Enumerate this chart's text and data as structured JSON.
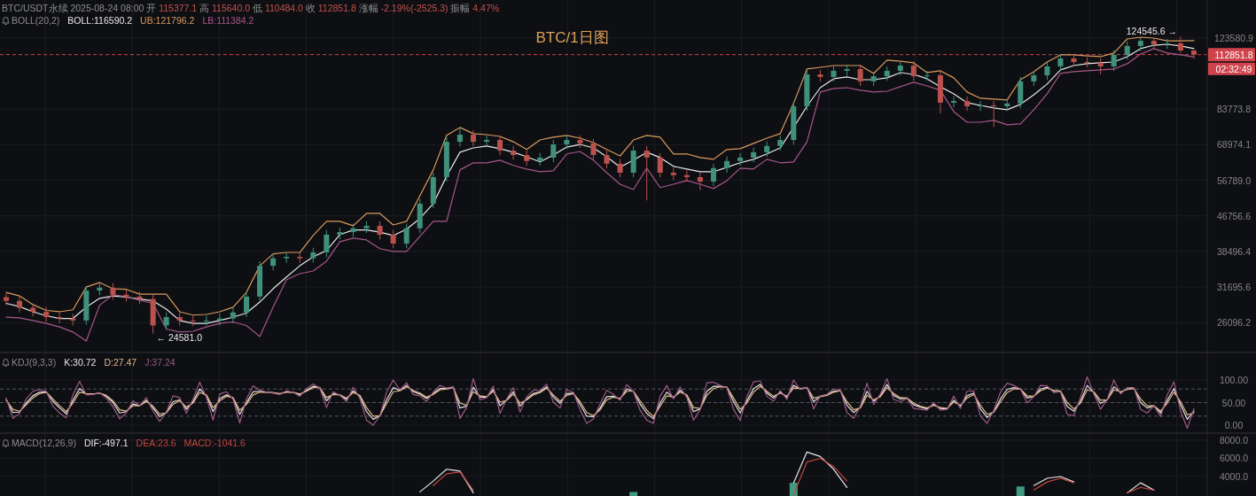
{
  "chart_data": [
    {
      "type": "candlestick",
      "title": "BTC/1日图",
      "subtitle": "BTC/USDT永续 2025-08-24 08:00 开 115377.1 高 115640.0 低 110484.0 收 112851.8 涨幅 -2.19%(-2525.3) 振幅 4.47%",
      "legend_title": "BOLL(20,2)",
      "legend": "top left",
      "log": true,
      "grid": true,
      "categories": [
        null,
        null,
        null,
        null,
        null,
        null,
        null,
        null,
        null,
        null,
        null,
        null,
        null,
        null,
        null,
        null,
        null,
        null,
        null,
        null,
        null,
        null,
        null,
        null,
        null,
        null,
        null,
        null,
        null,
        null,
        null,
        null,
        null,
        null,
        null,
        null,
        null,
        null,
        null,
        null,
        null,
        null,
        null,
        null,
        null,
        null,
        null,
        null,
        null,
        null,
        null,
        null,
        null,
        null,
        null,
        null,
        null,
        null,
        null,
        null,
        null,
        null,
        null,
        null,
        null,
        null,
        null,
        null,
        null,
        null,
        null,
        null,
        null,
        null,
        null,
        null,
        null,
        null,
        null,
        null,
        null,
        null,
        null,
        null,
        null,
        null,
        null,
        null,
        null,
        null
      ],
      "ohlc": [
        [
          30000,
          30700,
          28700,
          29400
        ],
        [
          29400,
          30100,
          27600,
          28300
        ],
        [
          28300,
          29000,
          27000,
          27700
        ],
        [
          27700,
          28400,
          26200,
          26900
        ],
        [
          26900,
          27600,
          26000,
          26700
        ],
        [
          26700,
          27400,
          25700,
          26400
        ],
        [
          26400,
          31900,
          25800,
          31100
        ],
        [
          31100,
          32400,
          30300,
          31600
        ],
        [
          31600,
          32400,
          29600,
          30400
        ],
        [
          30400,
          31200,
          29300,
          30100
        ],
        [
          30100,
          30900,
          28900,
          29700
        ],
        [
          29700,
          30400,
          24581.0,
          25700
        ],
        [
          25700,
          27600,
          25100,
          26900
        ],
        [
          26900,
          27600,
          25700,
          26400
        ],
        [
          26400,
          27100,
          25600,
          26300
        ],
        [
          26300,
          27100,
          25700,
          26400
        ],
        [
          26400,
          27400,
          25700,
          26700
        ],
        [
          26700,
          28300,
          26000,
          27600
        ],
        [
          27600,
          30900,
          26900,
          30100
        ],
        [
          30100,
          36500,
          29300,
          35600
        ],
        [
          35600,
          38000,
          34700,
          37100
        ],
        [
          37100,
          38300,
          36200,
          37400
        ],
        [
          37400,
          38300,
          36200,
          37100
        ],
        [
          37100,
          39300,
          36200,
          38300
        ],
        [
          38300,
          43300,
          37300,
          42200
        ],
        [
          42200,
          43900,
          41100,
          42800
        ],
        [
          42800,
          44800,
          41700,
          43700
        ],
        [
          43700,
          45400,
          42600,
          44300
        ],
        [
          44300,
          45400,
          41100,
          42200
        ],
        [
          42200,
          43300,
          39200,
          40200
        ],
        [
          40200,
          44800,
          39200,
          43700
        ],
        [
          43700,
          51300,
          42600,
          50000
        ],
        [
          50000,
          59200,
          48800,
          57800
        ],
        [
          57800,
          71900,
          56400,
          70100
        ],
        [
          70100,
          75900,
          68300,
          72900
        ],
        [
          72900,
          74700,
          68300,
          70100
        ],
        [
          70100,
          72600,
          68300,
          70800
        ],
        [
          70800,
          72600,
          65100,
          66800
        ],
        [
          66800,
          68500,
          63600,
          65200
        ],
        [
          65200,
          66800,
          61500,
          63100
        ],
        [
          63100,
          65900,
          61500,
          64300
        ],
        [
          64300,
          70800,
          62700,
          69100
        ],
        [
          69100,
          72600,
          67400,
          70800
        ],
        [
          70800,
          72600,
          67800,
          69500
        ],
        [
          69500,
          71200,
          63600,
          65200
        ],
        [
          65200,
          66800,
          60600,
          62200
        ],
        [
          62200,
          63800,
          57700,
          59200
        ],
        [
          59200,
          68500,
          57700,
          66800
        ],
        [
          66800,
          68500,
          50900,
          64300
        ],
        [
          64300,
          65900,
          57700,
          59200
        ],
        [
          59200,
          60700,
          56900,
          58400
        ],
        [
          58400,
          59900,
          56400,
          57800
        ],
        [
          57800,
          59200,
          53800,
          56400
        ],
        [
          56400,
          62200,
          55000,
          60700
        ],
        [
          60700,
          64700,
          59200,
          63100
        ],
        [
          63100,
          65900,
          61500,
          64300
        ],
        [
          64300,
          67900,
          62700,
          66200
        ],
        [
          66200,
          70200,
          64500,
          68500
        ],
        [
          68500,
          72600,
          66800,
          70800
        ],
        [
          70800,
          87200,
          69000,
          85100
        ],
        [
          85100,
          103800,
          83000,
          101300
        ],
        [
          101300,
          103800,
          97400,
          99900
        ],
        [
          99900,
          105900,
          97400,
          103300
        ],
        [
          103300,
          106900,
          100700,
          104300
        ],
        [
          104300,
          106900,
          95100,
          97500
        ],
        [
          97500,
          102800,
          95100,
          100300
        ],
        [
          100300,
          105900,
          97800,
          103300
        ],
        [
          103300,
          109000,
          100700,
          106300
        ],
        [
          106300,
          109000,
          97800,
          100300
        ],
        [
          100300,
          103300,
          97800,
          100800
        ],
        [
          100800,
          103300,
          81800,
          86800
        ],
        [
          86800,
          89800,
          84600,
          87600
        ],
        [
          87600,
          89800,
          83000,
          85100
        ],
        [
          85100,
          87600,
          83000,
          85500
        ],
        [
          85500,
          87600,
          76000,
          85100
        ],
        [
          85100,
          88600,
          83000,
          86400
        ],
        [
          86400,
          99900,
          84200,
          97500
        ],
        [
          97500,
          103300,
          95100,
          100800
        ],
        [
          100800,
          108400,
          98300,
          105800
        ],
        [
          105800,
          113300,
          103200,
          110500
        ],
        [
          110500,
          113300,
          105700,
          108400
        ],
        [
          108400,
          111100,
          105200,
          107900
        ],
        [
          107900,
          110600,
          101300,
          105800
        ],
        [
          105800,
          115500,
          103200,
          112700
        ],
        [
          112700,
          121300,
          109900,
          118300
        ],
        [
          118300,
          123600,
          115300,
          121700
        ],
        [
          121700,
          123500,
          116400,
          119400
        ],
        [
          119400,
          123000,
          116400,
          120000
        ],
        [
          120000,
          124545.6,
          114000,
          115400
        ],
        [
          115377.1,
          115640.0,
          110484.0,
          112851.8
        ]
      ],
      "series": [
        {
          "name": "BOLL:116590.2",
          "type": "line",
          "color": "#e8e8e8",
          "values": [
            29000,
            28500,
            27700,
            27100,
            26700,
            26700,
            28400,
            29800,
            30200,
            30000,
            29700,
            29400,
            28100,
            26400,
            26000,
            26000,
            26400,
            26900,
            27500,
            29200,
            31400,
            33500,
            35600,
            37400,
            38700,
            42200,
            43300,
            43300,
            42800,
            42000,
            43500,
            46100,
            50000,
            58100,
            66200,
            67800,
            68500,
            67500,
            66200,
            64600,
            62800,
            65200,
            68100,
            69100,
            67800,
            64600,
            61000,
            63400,
            66200,
            64300,
            61300,
            60400,
            59500,
            59500,
            61000,
            62500,
            63700,
            65600,
            67800,
            75800,
            85100,
            94200,
            98900,
            99900,
            98400,
            98400,
            99400,
            102300,
            101300,
            98900,
            94700,
            91100,
            86800,
            85500,
            84300,
            83500,
            86000,
            90600,
            96100,
            103800,
            106300,
            107400,
            107900,
            108400,
            111600,
            116600,
            118800,
            119400,
            118300,
            116590.2
          ]
        },
        {
          "name": "UB:121796.2",
          "type": "line",
          "color": "#d99a5e",
          "values": [
            30800,
            30200,
            28800,
            27900,
            27700,
            28000,
            31700,
            32500,
            31400,
            31300,
            30500,
            30500,
            30500,
            27700,
            27200,
            27300,
            27700,
            28400,
            30800,
            35600,
            38000,
            38300,
            38300,
            42000,
            45400,
            45400,
            44300,
            47400,
            47400,
            44500,
            45400,
            52200,
            60100,
            72600,
            75800,
            73300,
            72900,
            72200,
            70100,
            67200,
            70800,
            71900,
            72600,
            71500,
            69800,
            67200,
            64900,
            70800,
            72600,
            71900,
            65600,
            65600,
            64300,
            63700,
            67200,
            67500,
            69500,
            71500,
            73300,
            86400,
            104300,
            105300,
            106300,
            106300,
            106300,
            101800,
            109500,
            108900,
            107900,
            102300,
            103300,
            99400,
            92000,
            88900,
            88500,
            88100,
            98400,
            102800,
            108400,
            112700,
            112700,
            112100,
            111600,
            113800,
            122900,
            124100,
            123500,
            121700,
            121700,
            121796.2
          ]
        },
        {
          "name": "LB:111384.2",
          "type": "line",
          "color": "#a8578a",
          "values": [
            26900,
            26800,
            26400,
            26000,
            25500,
            24800,
            23600,
            28700,
            30400,
            30100,
            29500,
            29000,
            25200,
            24800,
            24900,
            25500,
            26000,
            26200,
            25700,
            24200,
            28400,
            33000,
            34100,
            34600,
            36500,
            40600,
            41400,
            41000,
            39100,
            38500,
            38500,
            41800,
            45400,
            45400,
            60100,
            62500,
            62500,
            63400,
            61600,
            60400,
            59500,
            59800,
            65600,
            66500,
            63400,
            59200,
            55600,
            54000,
            60700,
            54600,
            55600,
            56700,
            55600,
            54300,
            56700,
            60700,
            60400,
            63700,
            62500,
            62800,
            70100,
            92000,
            93800,
            94200,
            92900,
            92000,
            92400,
            94700,
            97000,
            95100,
            92900,
            82700,
            78000,
            78000,
            78800,
            76900,
            77300,
            83500,
            91100,
            101800,
            102800,
            103300,
            103800,
            104300,
            107400,
            113200,
            116600,
            113800,
            112700,
            111384.2
          ]
        }
      ],
      "ylim": [
        22170,
        152080
      ],
      "yticks": [
        123580.9,
        83773.8,
        68974.1,
        {
          "value": 56789,
          "label": "56789.0"
        },
        46756.6,
        38496.4,
        31695.6,
        26096.2
      ],
      "ref_lines": [
        {
          "axis": "y",
          "value": 112851.8,
          "label": "112851.8",
          "color": "#cf444c",
          "line_style": "dashed"
        }
      ],
      "annotations": [
        {
          "text": "124545.6 →",
          "y": 124545.6
        },
        {
          "text": "← 24581.0",
          "y": 24581.0
        },
        "02:32:49"
      ]
    },
    {
      "type": "line",
      "legend_title": "KDJ(9,3,3)",
      "legend": "top left",
      "grid": true,
      "categories": [
        null,
        null,
        null,
        null,
        null,
        null,
        null,
        null,
        null,
        null,
        null,
        null,
        null,
        null,
        null,
        null,
        null,
        null,
        null,
        null,
        null,
        null,
        null,
        null,
        null,
        null,
        null,
        null,
        null,
        null,
        null,
        null,
        null,
        null,
        null,
        null,
        null,
        null,
        null,
        null,
        null,
        null,
        null,
        null,
        null,
        null,
        null,
        null,
        null,
        null,
        null,
        null,
        null,
        null,
        null,
        null,
        null,
        null,
        null,
        null,
        null,
        null,
        null,
        null,
        null,
        null,
        null,
        null,
        null,
        null,
        null,
        null,
        null,
        null,
        null,
        null,
        null,
        null,
        null,
        null,
        null,
        null,
        null,
        null,
        null,
        null,
        null,
        null,
        null,
        null,
        null,
        null,
        null,
        null,
        null,
        null,
        null,
        null,
        null,
        null,
        null,
        null,
        null,
        null,
        null,
        null,
        null,
        null,
        null,
        null,
        null,
        null,
        null,
        null,
        null,
        null,
        null,
        null,
        null,
        null,
        null,
        null,
        null,
        null,
        null,
        null,
        null,
        null,
        null,
        null,
        null,
        null,
        null,
        null,
        null,
        null,
        null,
        null,
        null,
        null,
        null,
        null,
        null,
        null,
        null,
        null,
        null,
        null,
        null,
        null,
        null,
        null,
        null,
        null,
        null,
        null,
        null,
        null,
        null,
        null,
        null,
        null,
        null,
        null,
        null,
        null,
        null,
        null,
        null,
        null,
        null,
        null,
        null,
        null,
        null,
        null,
        null,
        null,
        null
      ],
      "series": [
        {
          "name": "K:30.72",
          "color": "#e6e6e6",
          "values": [
            57,
            28,
            29,
            49,
            65,
            73,
            74,
            53,
            38,
            25,
            55,
            81,
            69,
            69,
            71,
            64,
            50,
            27,
            30,
            47,
            43,
            55,
            38,
            19,
            28,
            52,
            56,
            35,
            52,
            80,
            65,
            30,
            59,
            67,
            60,
            24,
            50,
            74,
            75,
            73,
            72,
            69,
            74,
            73,
            67,
            77,
            86,
            83,
            54,
            70,
            67,
            57,
            76,
            64,
            30,
            13,
            21,
            56,
            83,
            77,
            88,
            74,
            69,
            59,
            70,
            81,
            81,
            84,
            38,
            42,
            84,
            62,
            62,
            79,
            43,
            56,
            74,
            42,
            58,
            70,
            74,
            85,
            62,
            48,
            70,
            71,
            46,
            20,
            19,
            38,
            63,
            64,
            58,
            80,
            75,
            47,
            26,
            14,
            49,
            73,
            61,
            77,
            65,
            30,
            36,
            75,
            86,
            86,
            84,
            52,
            27,
            54,
            81,
            90,
            71,
            60,
            73,
            62,
            88,
            80,
            83,
            52,
            64,
            67,
            75,
            77,
            44,
            28,
            39,
            75,
            53,
            65,
            90,
            66,
            58,
            60,
            45,
            40,
            36,
            46,
            37,
            36,
            55,
            42,
            65,
            71,
            36,
            17,
            30,
            58,
            79,
            83,
            80,
            60,
            64,
            80,
            84,
            75,
            75,
            41,
            31,
            53,
            88,
            72,
            48,
            56,
            85,
            72,
            80,
            82,
            50,
            38,
            43,
            27,
            55,
            81,
            45,
            13,
            31
          ]
        },
        {
          "name": "D:27.47",
          "color": "#e3b98a",
          "values": [
            55,
            35,
            31,
            45,
            60,
            70,
            73,
            58,
            43,
            30,
            49,
            73,
            70,
            69,
            71,
            66,
            54,
            34,
            31,
            43,
            43,
            52,
            42,
            25,
            27,
            46,
            54,
            40,
            49,
            72,
            67,
            39,
            54,
            64,
            61,
            33,
            46,
            67,
            73,
            73,
            72,
            70,
            73,
            73,
            69,
            75,
            83,
            83,
            61,
            68,
            67,
            60,
            72,
            66,
            39,
            20,
            21,
            47,
            74,
            76,
            85,
            77,
            71,
            62,
            68,
            78,
            80,
            83,
            49,
            44,
            74,
            65,
            63,
            75,
            51,
            55,
            69,
            49,
            56,
            67,
            72,
            82,
            67,
            53,
            66,
            70,
            52,
            28,
            21,
            34,
            56,
            62,
            59,
            75,
            75,
            54,
            33,
            19,
            42,
            65,
            62,
            73,
            67,
            39,
            37,
            66,
            81,
            85,
            84,
            60,
            35,
            49,
            73,
            86,
            75,
            64,
            71,
            64,
            82,
            81,
            83,
            60,
            63,
            66,
            73,
            76,
            52,
            34,
            38,
            66,
            56,
            63,
            83,
            70,
            61,
            60,
            49,
            42,
            38,
            44,
            39,
            37,
            51,
            44,
            60,
            68,
            44,
            24,
            29,
            51,
            72,
            80,
            80,
            65,
            64,
            76,
            82,
            77,
            76,
            50,
            36,
            49,
            78,
            74,
            55,
            56,
            78,
            74,
            79,
            81,
            58,
            43,
            43,
            31,
            49,
            73,
            52,
            23,
            27
          ]
        },
        {
          "name": "J:37.24",
          "color": "#9c5a86",
          "values": [
            60,
            15,
            26,
            58,
            75,
            79,
            75,
            42,
            27,
            16,
            67,
            97,
            67,
            68,
            72,
            60,
            41,
            14,
            27,
            54,
            43,
            61,
            31,
            8,
            29,
            65,
            61,
            26,
            58,
            95,
            62,
            11,
            69,
            74,
            57,
            5,
            58,
            87,
            78,
            73,
            71,
            68,
            76,
            73,
            64,
            81,
            91,
            82,
            39,
            74,
            66,
            52,
            84,
            59,
            11,
            0,
            21,
            73,
            100,
            78,
            94,
            68,
            65,
            52,
            73,
            88,
            82,
            85,
            15,
            39,
            103,
            56,
            61,
            86,
            26,
            58,
            83,
            29,
            63,
            77,
            77,
            91,
            51,
            38,
            78,
            73,
            34,
            4,
            14,
            47,
            77,
            68,
            55,
            90,
            74,
            33,
            11,
            4,
            64,
            88,
            58,
            84,
            61,
            11,
            34,
            94,
            95,
            88,
            83,
            35,
            10,
            63,
            96,
            98,
            64,
            53,
            77,
            57,
            100,
            79,
            84,
            36,
            65,
            68,
            80,
            78,
            28,
            15,
            42,
            93,
            46,
            69,
            103,
            57,
            52,
            59,
            37,
            35,
            33,
            50,
            33,
            35,
            64,
            37,
            75,
            76,
            20,
            4,
            33,
            73,
            93,
            88,
            80,
            49,
            63,
            88,
            87,
            72,
            74,
            24,
            21,
            62,
            107,
            69,
            35,
            57,
            100,
            69,
            83,
            83,
            35,
            27,
            43,
            19,
            67,
            96,
            31,
            -7,
            37
          ]
        }
      ],
      "ylim": [
        -17.6,
        160.8
      ],
      "yticks": [
        {
          "value": 100,
          "label": "100.00"
        },
        {
          "value": 50,
          "label": "50.00"
        },
        {
          "value": 0,
          "label": "0.00"
        }
      ],
      "ref_lines": [
        {
          "axis": "y",
          "value": 80,
          "color": "#55565c",
          "line_style": "dashed"
        },
        {
          "axis": "y",
          "value": 50,
          "color": "#55565c",
          "line_style": "dashed"
        },
        {
          "axis": "y",
          "value": 20,
          "color": "#55565c",
          "line_style": "dashed"
        }
      ]
    },
    {
      "type": "line",
      "legend_title": "MACD(12,26,9)",
      "legend": "top left",
      "grid": true,
      "categories": [
        null,
        null,
        null,
        null,
        null,
        null,
        null,
        null,
        null,
        null,
        null,
        null,
        null,
        null,
        null,
        null,
        null,
        null,
        null,
        null,
        null,
        null,
        null,
        null,
        null,
        null,
        null,
        null,
        null,
        null,
        null,
        null,
        null,
        null,
        null,
        null,
        null,
        null,
        null,
        null,
        null,
        null,
        null,
        null,
        null,
        null,
        null,
        null,
        null,
        null,
        null,
        null,
        null,
        null,
        null,
        null,
        null,
        null,
        null,
        null,
        null,
        null,
        null,
        null,
        null,
        null,
        null,
        null,
        null,
        null,
        null,
        null,
        null,
        null,
        null,
        null,
        null,
        null,
        null,
        null,
        null,
        null,
        null,
        null,
        null,
        null,
        null,
        null,
        null,
        null
      ],
      "series": [
        {
          "name": "DIF:-497.1",
          "color": "#e8e8e8",
          "values": [
            null,
            null,
            null,
            null,
            null,
            null,
            null,
            null,
            null,
            null,
            null,
            null,
            null,
            null,
            null,
            null,
            null,
            null,
            null,
            null,
            null,
            null,
            null,
            null,
            null,
            null,
            null,
            null,
            null,
            null,
            null,
            2300,
            3500,
            4800,
            4600,
            2200,
            null,
            null,
            null,
            null,
            null,
            null,
            null,
            null,
            null,
            null,
            null,
            null,
            null,
            null,
            null,
            null,
            null,
            null,
            null,
            null,
            null,
            null,
            null,
            3300,
            6700,
            6200,
            4800,
            2800,
            null,
            null,
            null,
            null,
            null,
            null,
            null,
            null,
            null,
            null,
            null,
            null,
            null,
            3000,
            3800,
            4000,
            3400,
            null,
            null,
            null,
            2200,
            3300,
            2500,
            null,
            null,
            null
          ]
        },
        {
          "name": "DEA:23.6",
          "color": "#c2473f",
          "values": [
            null,
            null,
            null,
            null,
            null,
            null,
            null,
            null,
            null,
            null,
            null,
            null,
            null,
            null,
            null,
            null,
            null,
            null,
            null,
            null,
            null,
            null,
            null,
            null,
            null,
            null,
            null,
            null,
            null,
            null,
            null,
            null,
            3000,
            4300,
            4500,
            2500,
            null,
            null,
            null,
            null,
            null,
            null,
            null,
            null,
            null,
            null,
            null,
            null,
            null,
            null,
            null,
            null,
            null,
            null,
            null,
            null,
            null,
            null,
            null,
            2000,
            5600,
            6000,
            5100,
            3500,
            null,
            null,
            null,
            null,
            null,
            null,
            null,
            null,
            null,
            null,
            null,
            null,
            null,
            2500,
            3400,
            3800,
            3300,
            null,
            null,
            null,
            2200,
            2800,
            2500,
            null,
            null,
            null
          ]
        },
        {
          "type": "bar",
          "color": "#3e9a80",
          "values": [
            null,
            null,
            null,
            null,
            null,
            null,
            null,
            null,
            null,
            null,
            null,
            null,
            null,
            null,
            null,
            null,
            null,
            null,
            null,
            null,
            null,
            null,
            null,
            null,
            null,
            null,
            null,
            null,
            null,
            null,
            null,
            null,
            null,
            null,
            null,
            null,
            null,
            null,
            null,
            null,
            null,
            null,
            null,
            null,
            null,
            null,
            null,
            2300,
            null,
            null,
            null,
            null,
            null,
            null,
            null,
            null,
            null,
            null,
            null,
            3300,
            null,
            null,
            null,
            null,
            null,
            null,
            null,
            null,
            null,
            null,
            null,
            null,
            null,
            null,
            null,
            null,
            2900,
            null,
            null,
            null,
            null,
            null,
            null,
            null,
            null,
            null,
            null,
            null,
            null,
            null
          ]
        }
      ],
      "ylim": [
        1850,
        8780
      ],
      "yticks": [
        {
          "value": 8000,
          "label": "8000.0"
        },
        {
          "value": 6000,
          "label": "6000.0"
        },
        {
          "value": 4000,
          "label": "4000.0"
        }
      ],
      "annotations": [
        "MACD:-1041.6"
      ]
    }
  ]
}
